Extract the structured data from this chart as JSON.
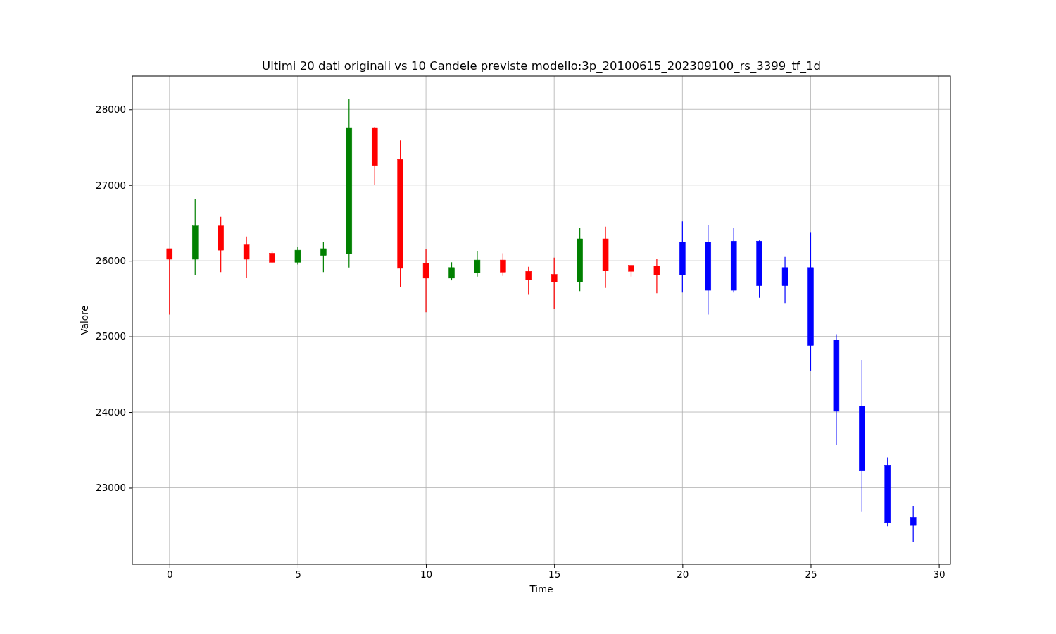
{
  "chart_data": {
    "type": "candlestick",
    "title": "Ultimi 20 dati originali vs 10 Candele previste modello:3p_20100615_202309100_rs_3399_tf_1d",
    "xlabel": "Time",
    "ylabel": "Valore",
    "x": [
      0,
      1,
      2,
      3,
      4,
      5,
      6,
      7,
      8,
      9,
      10,
      11,
      12,
      13,
      14,
      15,
      16,
      17,
      18,
      19,
      20,
      21,
      22,
      23,
      24,
      25,
      26,
      27,
      28,
      29
    ],
    "ohlc": [
      [
        26160,
        26160,
        25290,
        26020
      ],
      [
        26020,
        26820,
        25810,
        26460
      ],
      [
        26460,
        26580,
        25850,
        26140
      ],
      [
        26210,
        26320,
        25770,
        26020
      ],
      [
        26100,
        26120,
        25970,
        25980
      ],
      [
        25980,
        26180,
        25950,
        26140
      ],
      [
        26070,
        26250,
        25850,
        26160
      ],
      [
        26090,
        28140,
        25910,
        27760
      ],
      [
        27760,
        27770,
        27000,
        27260
      ],
      [
        27340,
        27590,
        25650,
        25900
      ],
      [
        25970,
        26160,
        25320,
        25770
      ],
      [
        25770,
        25980,
        25740,
        25910
      ],
      [
        25840,
        26130,
        25790,
        26010
      ],
      [
        26010,
        26100,
        25800,
        25850
      ],
      [
        25860,
        25920,
        25550,
        25750
      ],
      [
        25820,
        26040,
        25360,
        25720
      ],
      [
        25720,
        26440,
        25600,
        26290
      ],
      [
        26290,
        26450,
        25640,
        25870
      ],
      [
        25940,
        25940,
        25790,
        25860
      ],
      [
        25930,
        26030,
        25570,
        25810
      ],
      [
        26250,
        26520,
        25580,
        25810
      ],
      [
        26250,
        26470,
        25290,
        25610
      ],
      [
        26260,
        26430,
        25580,
        25610
      ],
      [
        26260,
        26270,
        25510,
        25670
      ],
      [
        25910,
        26050,
        25440,
        25670
      ],
      [
        25910,
        26370,
        24550,
        24880
      ],
      [
        24950,
        25030,
        23570,
        24010
      ],
      [
        24080,
        24690,
        22680,
        23230
      ],
      [
        23300,
        23400,
        22490,
        22540
      ],
      [
        22610,
        22760,
        22280,
        22510
      ]
    ],
    "colors": [
      "#ff0000",
      "#008000",
      "#ff0000",
      "#ff0000",
      "#ff0000",
      "#008000",
      "#008000",
      "#008000",
      "#ff0000",
      "#ff0000",
      "#ff0000",
      "#008000",
      "#008000",
      "#ff0000",
      "#ff0000",
      "#ff0000",
      "#008000",
      "#ff0000",
      "#ff0000",
      "#ff0000",
      "#0000ff",
      "#0000ff",
      "#0000ff",
      "#0000ff",
      "#0000ff",
      "#0000ff",
      "#0000ff",
      "#0000ff",
      "#0000ff",
      "#0000ff"
    ],
    "xlim": [
      -1.45,
      30.45
    ],
    "ylim": [
      21990,
      28440
    ],
    "xticks": [
      0,
      5,
      10,
      15,
      20,
      25,
      30
    ],
    "yticks": [
      23000,
      24000,
      25000,
      26000,
      27000,
      28000
    ],
    "grid": true
  }
}
